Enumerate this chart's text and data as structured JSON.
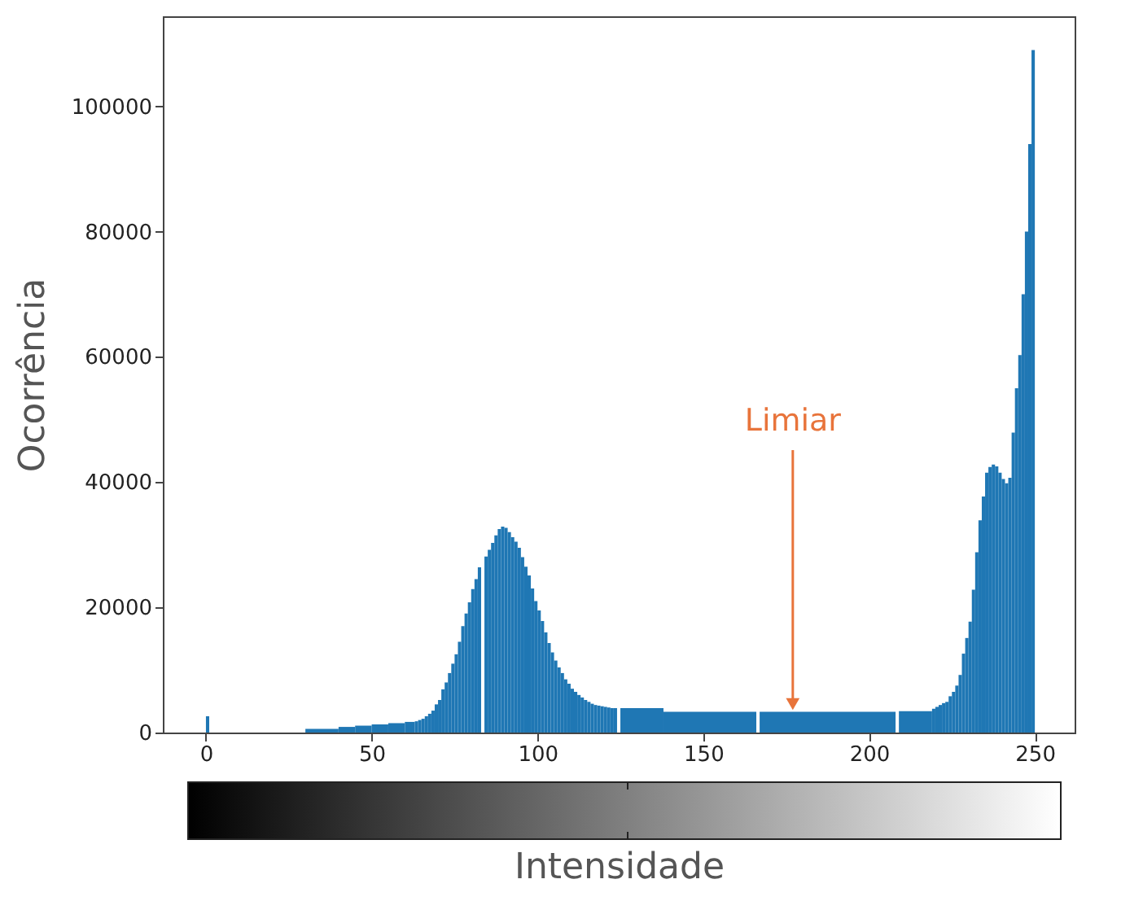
{
  "chart_data": {
    "type": "histogram",
    "xlabel": "Intensidade",
    "ylabel": "Ocorrência",
    "color": "#1f77b4",
    "bins": [
      0,
      1,
      30,
      40,
      45,
      50,
      55,
      60,
      63,
      64,
      65,
      66,
      67,
      68,
      69,
      70,
      71,
      72,
      73,
      74,
      75,
      76,
      77,
      78,
      79,
      80,
      81,
      82,
      83,
      84,
      85,
      86,
      87,
      88,
      89,
      90,
      91,
      92,
      93,
      94,
      95,
      96,
      97,
      98,
      99,
      100,
      101,
      102,
      103,
      104,
      105,
      106,
      107,
      108,
      109,
      110,
      111,
      112,
      113,
      114,
      115,
      116,
      117,
      118,
      119,
      120,
      121,
      122,
      123,
      124,
      125,
      138,
      166,
      167,
      208,
      209,
      219,
      220,
      221,
      222,
      223,
      224,
      225,
      226,
      227,
      228,
      229,
      230,
      231,
      232,
      233,
      234,
      235,
      236,
      237,
      238,
      239,
      240,
      241,
      242,
      243,
      244,
      245,
      246,
      247,
      248,
      249,
      250
    ],
    "values": [
      2600,
      0,
      600,
      900,
      1100,
      1300,
      1500,
      1700,
      1800,
      2000,
      2200,
      2600,
      3000,
      3500,
      4500,
      5200,
      6900,
      8000,
      9500,
      11000,
      12500,
      14500,
      17000,
      19000,
      20800,
      22900,
      24500,
      26400,
      0,
      28100,
      29200,
      30300,
      31500,
      32500,
      32900,
      32700,
      32000,
      31200,
      30500,
      29500,
      28000,
      26500,
      25100,
      23000,
      21000,
      19500,
      17800,
      16000,
      14300,
      12800,
      11500,
      10400,
      9500,
      8500,
      7800,
      7000,
      6500,
      6000,
      5600,
      5200,
      4900,
      4600,
      4400,
      4300,
      4200,
      4100,
      4000,
      3900,
      3900,
      0,
      3900,
      3300,
      0,
      3300,
      0,
      3400,
      3800,
      4100,
      4400,
      4700,
      4900,
      5800,
      6500,
      7500,
      9200,
      12600,
      15100,
      17700,
      22800,
      28800,
      33900,
      37700,
      41500,
      42400,
      42800,
      42500,
      41500,
      40500,
      39800,
      40700,
      47900,
      55000,
      60300,
      70000,
      80000,
      94000,
      109000
    ],
    "xlim": [
      -13,
      262
    ],
    "ylim": [
      0,
      114400
    ],
    "xticks": [
      0,
      50,
      100,
      150,
      200,
      250
    ],
    "yticks": [
      0,
      20000,
      40000,
      60000,
      80000,
      100000
    ],
    "grid": false,
    "annotations": [
      {
        "text": "Limiar",
        "x": 177,
        "y": 3500
      }
    ]
  }
}
